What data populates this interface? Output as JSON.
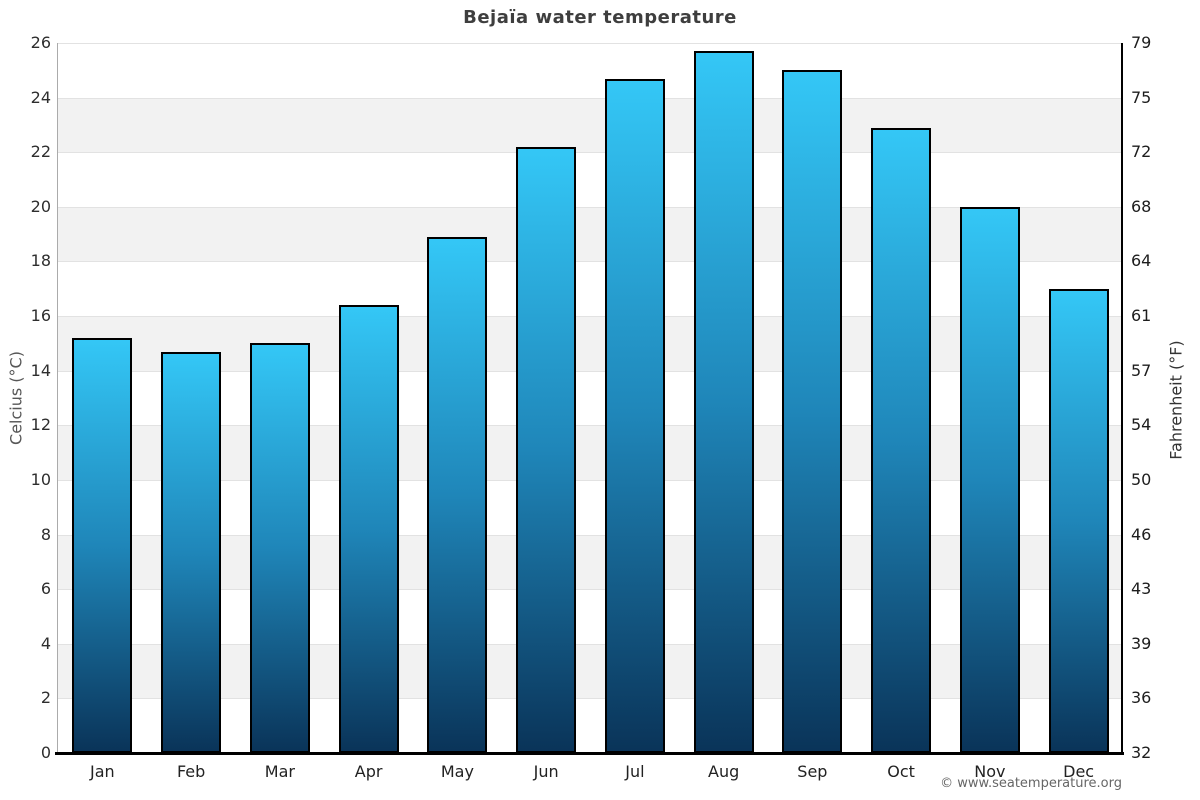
{
  "title": "Bejaïa water temperature",
  "footer": "© www.seatemperature.org",
  "axes": {
    "left_title": "Celcius (°C)",
    "right_title": "Fahrenheit (°F)"
  },
  "chart_data": {
    "type": "bar",
    "title": "Bejaïa water temperature",
    "categories": [
      "Jan",
      "Feb",
      "Mar",
      "Apr",
      "May",
      "Jun",
      "Jul",
      "Aug",
      "Sep",
      "Oct",
      "Nov",
      "Dec"
    ],
    "values": [
      15.2,
      14.7,
      15.0,
      16.4,
      18.9,
      22.2,
      24.7,
      25.7,
      25.0,
      22.9,
      20.0,
      17.0
    ],
    "xlabel": "",
    "ylabel_left": "Celcius (°C)",
    "ylabel_right": "Fahrenheit (°F)",
    "ylim": [
      0,
      26
    ],
    "celsius_ticks": [
      0,
      2,
      4,
      6,
      8,
      10,
      12,
      14,
      16,
      18,
      20,
      22,
      24,
      26
    ],
    "fahrenheit_tick_labels": [
      "32",
      "36",
      "39",
      "43",
      "46",
      "50",
      "54",
      "57",
      "61",
      "64",
      "68",
      "72",
      "75",
      "79"
    ],
    "grid": "alternating-horizontal-bands",
    "legend": "none",
    "colors": {
      "bar_gradient_top": "#34c7f6",
      "bar_gradient_mid": "#1f86b9",
      "bar_gradient_bottom": "#0a3459",
      "bar_border": "#000000",
      "band_light": "#ffffff",
      "band_dark": "#f2f2f2",
      "gridline": "#e2e2e2",
      "title_text": "#3e3e3e"
    }
  }
}
